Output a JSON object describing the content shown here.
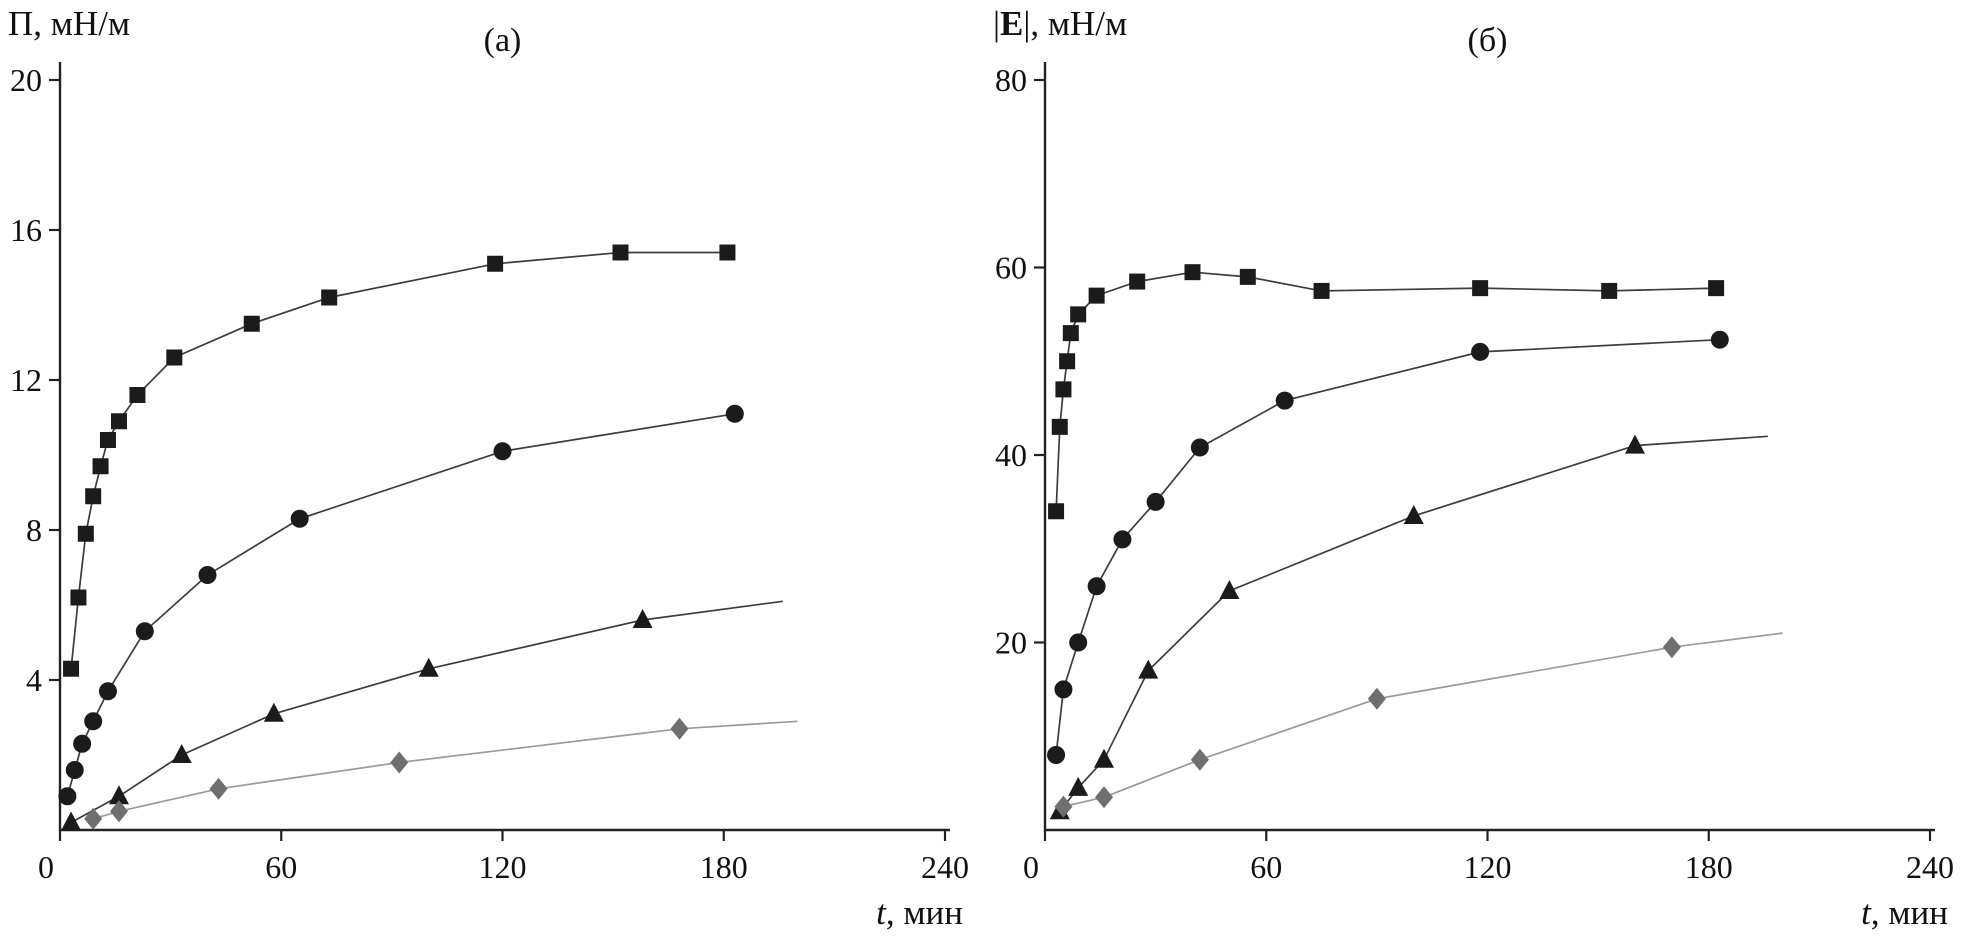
{
  "figure": {
    "background": "#ffffff",
    "axis_color": "#222222"
  },
  "charts": [
    {
      "id": "a",
      "title": "(а)",
      "ylabel": {
        "p1": "Π, мН/м",
        "bold": "",
        "p2": ""
      },
      "xlabel": {
        "italic": "t",
        "rest": ", мин"
      },
      "type": "line",
      "xlim": [
        0,
        240
      ],
      "ylim": [
        0,
        20
      ],
      "xticks": [
        0,
        60,
        120,
        180,
        240
      ],
      "yticks": [
        4,
        8,
        12,
        16,
        20
      ],
      "series": [
        {
          "name": "series-squares",
          "marker": "square",
          "color": "#1b1b1b",
          "line_color": "#3c3c3c",
          "points": [
            [
              3,
              4.3
            ],
            [
              5,
              6.2
            ],
            [
              7,
              7.9
            ],
            [
              9,
              8.9
            ],
            [
              11,
              9.7
            ],
            [
              13,
              10.4
            ],
            [
              16,
              10.9
            ],
            [
              21,
              11.6
            ],
            [
              31,
              12.6
            ],
            [
              52,
              13.5
            ],
            [
              73,
              14.2
            ],
            [
              118,
              15.1
            ],
            [
              152,
              15.4
            ],
            [
              181,
              15.4
            ]
          ]
        },
        {
          "name": "series-circles",
          "marker": "circle",
          "color": "#1b1b1b",
          "line_color": "#3c3c3c",
          "points": [
            [
              2,
              0.9
            ],
            [
              4,
              1.6
            ],
            [
              6,
              2.3
            ],
            [
              9,
              2.9
            ],
            [
              13,
              3.7
            ],
            [
              23,
              5.3
            ],
            [
              40,
              6.8
            ],
            [
              65,
              8.3
            ],
            [
              120,
              10.1
            ],
            [
              183,
              11.1
            ]
          ]
        },
        {
          "name": "series-triangles",
          "marker": "triangle",
          "color": "#1b1b1b",
          "line_color": "#3c3c3c",
          "points": [
            [
              3,
              0.2
            ],
            [
              16,
              0.9
            ],
            [
              33,
              2.0
            ],
            [
              58,
              3.1
            ],
            [
              100,
              4.3
            ],
            [
              158,
              5.6
            ]
          ],
          "line_extension": [
            196,
            6.1
          ]
        },
        {
          "name": "series-diamonds",
          "marker": "diamond",
          "color": "#6f6f6f",
          "line_color": "#9a9a9a",
          "points": [
            [
              9,
              0.3
            ],
            [
              16,
              0.5
            ],
            [
              43,
              1.1
            ],
            [
              92,
              1.8
            ],
            [
              168,
              2.7
            ]
          ],
          "line_extension": [
            200,
            2.9
          ]
        }
      ]
    },
    {
      "id": "b",
      "title": "(б)",
      "ylabel": {
        "p1": "|",
        "bold": "E",
        "p2": "|, мН/м"
      },
      "xlabel": {
        "italic": "t",
        "rest": ", мин"
      },
      "type": "line",
      "xlim": [
        0,
        240
      ],
      "ylim": [
        0,
        80
      ],
      "xticks": [
        0,
        60,
        120,
        180,
        240
      ],
      "yticks": [
        20,
        40,
        60,
        80
      ],
      "series": [
        {
          "name": "series-squares",
          "marker": "square",
          "color": "#1b1b1b",
          "line_color": "#3c3c3c",
          "points": [
            [
              3,
              34
            ],
            [
              4,
              43
            ],
            [
              5,
              47
            ],
            [
              6,
              50
            ],
            [
              7,
              53
            ],
            [
              9,
              55
            ],
            [
              14,
              57
            ],
            [
              25,
              58.5
            ],
            [
              40,
              59.5
            ],
            [
              55,
              59
            ],
            [
              75,
              57.5
            ],
            [
              118,
              57.8
            ],
            [
              153,
              57.5
            ],
            [
              182,
              57.8
            ]
          ]
        },
        {
          "name": "series-circles",
          "marker": "circle",
          "color": "#1b1b1b",
          "line_color": "#3c3c3c",
          "points": [
            [
              3,
              8
            ],
            [
              5,
              15
            ],
            [
              9,
              20
            ],
            [
              14,
              26
            ],
            [
              21,
              31
            ],
            [
              30,
              35
            ],
            [
              42,
              40.8
            ],
            [
              65,
              45.8
            ],
            [
              118,
              51
            ],
            [
              183,
              52.3
            ]
          ]
        },
        {
          "name": "series-triangles",
          "marker": "triangle",
          "color": "#1b1b1b",
          "line_color": "#3c3c3c",
          "points": [
            [
              4,
              2
            ],
            [
              9,
              4.5
            ],
            [
              16,
              7.5
            ],
            [
              28,
              17
            ],
            [
              50,
              25.5
            ],
            [
              100,
              33.5
            ],
            [
              160,
              41
            ]
          ],
          "line_extension": [
            196,
            42
          ]
        },
        {
          "name": "series-diamonds",
          "marker": "diamond",
          "color": "#6f6f6f",
          "line_color": "#9a9a9a",
          "points": [
            [
              5,
              2.5
            ],
            [
              16,
              3.5
            ],
            [
              42,
              7.5
            ],
            [
              90,
              14
            ],
            [
              170,
              19.5
            ]
          ],
          "line_extension": [
            200,
            21
          ]
        }
      ]
    }
  ]
}
